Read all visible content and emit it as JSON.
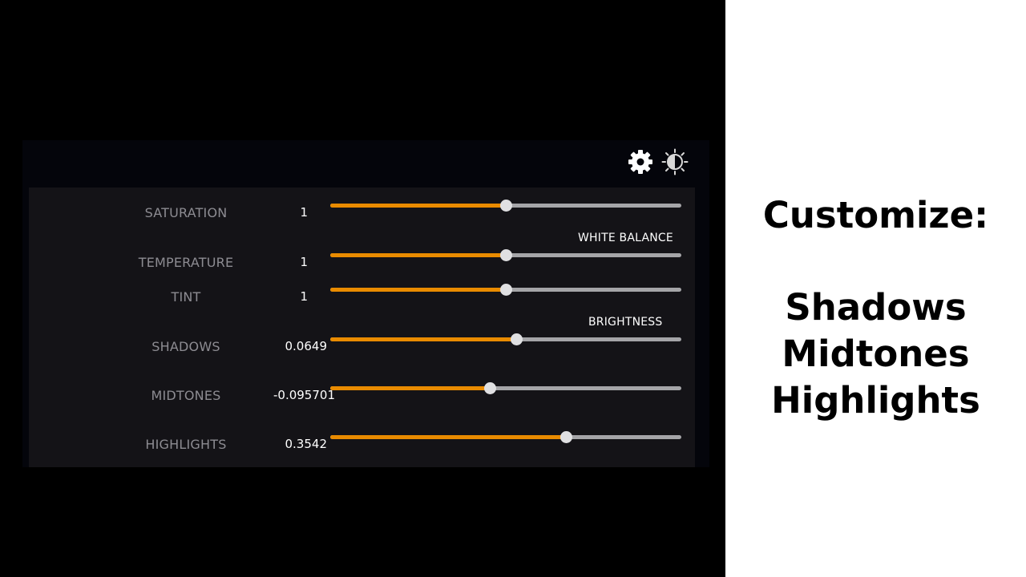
{
  "colors": {
    "accent": "#e98b00",
    "track": "#a5a5a8",
    "thumb": "#e0e0e2",
    "panel_bg": "#141317",
    "label": "#8d8c92"
  },
  "toolbar": {
    "icons": [
      "gear-icon",
      "contrast-icon"
    ]
  },
  "sections": {
    "white_balance": "WHITE BALANCE",
    "brightness": "BRIGHTNESS"
  },
  "rows": [
    {
      "label": "SATURATION",
      "value": "1",
      "level": 0.5
    },
    {
      "label": "TEMPERATURE",
      "value": "1",
      "level": 0.5
    },
    {
      "label": "TINT",
      "value": "1",
      "level": 0.5
    },
    {
      "label": "SHADOWS",
      "value": "0.0649",
      "level": 0.53
    },
    {
      "label": "MIDTONES",
      "value": "-0.095701",
      "level": 0.455
    },
    {
      "label": "HIGHLIGHTS",
      "value": "0.3542",
      "level": 0.672
    }
  ],
  "caption": {
    "heading": "Customize:",
    "lines": [
      "Shadows",
      "Midtones",
      "Highlights"
    ]
  }
}
